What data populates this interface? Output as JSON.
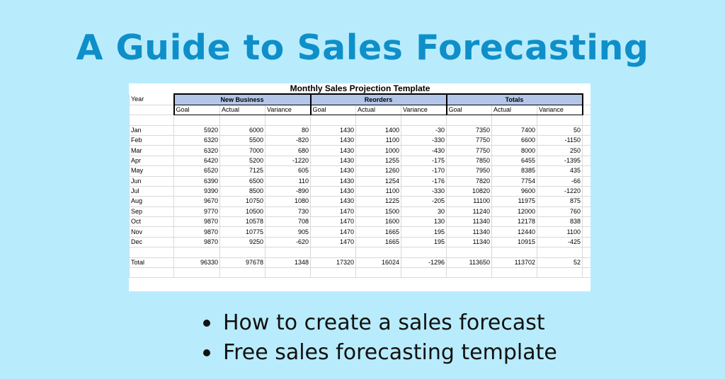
{
  "title": "A Guide to Sales Forecasting",
  "sheet": {
    "title": "Monthly Sales Projection Template",
    "year_label": "Year",
    "groups": [
      "New Business",
      "Reorders",
      "Totals"
    ],
    "subheaders": [
      "Goal",
      "Actual",
      "Variance"
    ],
    "rows": [
      {
        "month": "Jan",
        "values": [
          "5920",
          "6000",
          "80",
          "1430",
          "1400",
          "-30",
          "7350",
          "7400",
          "50"
        ]
      },
      {
        "month": "Feb",
        "values": [
          "6320",
          "5500",
          "-820",
          "1430",
          "1100",
          "-330",
          "7750",
          "6600",
          "-1150"
        ]
      },
      {
        "month": "Mar",
        "values": [
          "6320",
          "7000",
          "680",
          "1430",
          "1000",
          "-430",
          "7750",
          "8000",
          "250"
        ]
      },
      {
        "month": "Apr",
        "values": [
          "6420",
          "5200",
          "-1220",
          "1430",
          "1255",
          "-175",
          "7850",
          "6455",
          "-1395"
        ]
      },
      {
        "month": "May",
        "values": [
          "6520",
          "7125",
          "605",
          "1430",
          "1260",
          "-170",
          "7950",
          "8385",
          "435"
        ]
      },
      {
        "month": "Jun",
        "values": [
          "6390",
          "6500",
          "110",
          "1430",
          "1254",
          "-176",
          "7820",
          "7754",
          "-66"
        ]
      },
      {
        "month": "Jul",
        "values": [
          "9390",
          "8500",
          "-890",
          "1430",
          "1100",
          "-330",
          "10820",
          "9600",
          "-1220"
        ]
      },
      {
        "month": "Aug",
        "values": [
          "9670",
          "10750",
          "1080",
          "1430",
          "1225",
          "-205",
          "11100",
          "11975",
          "875"
        ]
      },
      {
        "month": "Sep",
        "values": [
          "9770",
          "10500",
          "730",
          "1470",
          "1500",
          "30",
          "11240",
          "12000",
          "760"
        ]
      },
      {
        "month": "Oct",
        "values": [
          "9870",
          "10578",
          "708",
          "1470",
          "1600",
          "130",
          "11340",
          "12178",
          "838"
        ]
      },
      {
        "month": "Nov",
        "values": [
          "9870",
          "10775",
          "905",
          "1470",
          "1665",
          "195",
          "11340",
          "12440",
          "1100"
        ]
      },
      {
        "month": "Dec",
        "values": [
          "9870",
          "9250",
          "-620",
          "1470",
          "1665",
          "195",
          "11340",
          "10915",
          "-425"
        ]
      }
    ],
    "total": {
      "label": "Total",
      "values": [
        "96330",
        "97678",
        "1348",
        "17320",
        "16024",
        "-1296",
        "113650",
        "113702",
        "52"
      ]
    }
  },
  "bullets": [
    "How to create a sales forecast",
    "Free sales forecasting template"
  ]
}
